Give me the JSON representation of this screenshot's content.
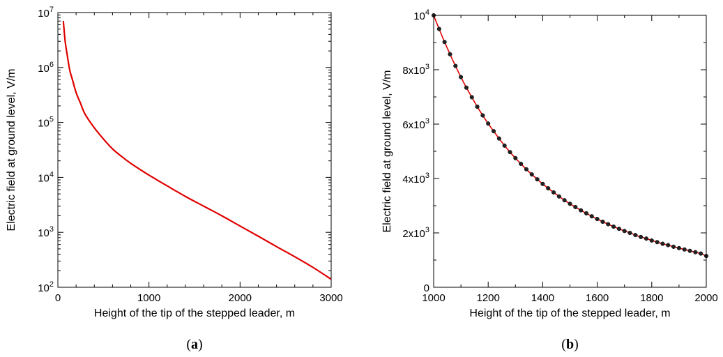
{
  "chart_data": [
    {
      "type": "line",
      "panel_label": "a",
      "xlabel": "Height of the tip of the stepped leader, m",
      "ylabel": "Electric field at ground level, V/m",
      "y_scale": "log",
      "xlim": [
        0,
        3000
      ],
      "ylim": [
        100,
        10000000
      ],
      "x_ticks": [
        "0",
        "1000",
        "2000",
        "3000"
      ],
      "y_ticks": [
        {
          "base": "10",
          "exp": "2"
        },
        {
          "base": "10",
          "exp": "3"
        },
        {
          "base": "10",
          "exp": "4"
        },
        {
          "base": "10",
          "exp": "5"
        },
        {
          "base": "10",
          "exp": "6"
        },
        {
          "base": "10",
          "exp": "7"
        }
      ],
      "colors": {
        "series_a": "#e00000",
        "series_b": "#333333"
      },
      "series": [
        {
          "style": "solid",
          "x": [
            60,
            80,
            100,
            130,
            160,
            200,
            250,
            300,
            400,
            500,
            600,
            700,
            800,
            900,
            1000,
            1200,
            1400,
            1600,
            1800,
            2000,
            2200,
            2400,
            2600,
            2800,
            3000
          ],
          "y": [
            7000000,
            3000000,
            1800000,
            900000,
            600000,
            350000,
            220000,
            140000,
            80000,
            50000,
            33000,
            24000,
            18000,
            14000,
            11000,
            7000,
            4500,
            3000,
            2000,
            1300,
            850,
            550,
            360,
            230,
            140
          ]
        },
        {
          "style": "dashed",
          "x": [
            60,
            80,
            100,
            130,
            160,
            200,
            250,
            300,
            400,
            500,
            600,
            700,
            800,
            900,
            1000,
            1200,
            1400,
            1600,
            1800,
            2000,
            2200,
            2400,
            2600,
            2800,
            3000
          ],
          "y": [
            7000000,
            3000000,
            1800000,
            900000,
            600000,
            350000,
            220000,
            140000,
            80000,
            50000,
            33000,
            24000,
            18000,
            14000,
            11000,
            7000,
            4500,
            3000,
            2000,
            1300,
            850,
            550,
            360,
            230,
            140
          ]
        }
      ]
    },
    {
      "type": "line",
      "panel_label": "b",
      "xlabel": "Height of the tip of the stepped leader, m",
      "ylabel": "Electric field at ground level, V/m",
      "y_scale": "linear",
      "xlim": [
        1000,
        2000
      ],
      "ylim": [
        0,
        10000
      ],
      "x_ticks": [
        "1000",
        "1200",
        "1400",
        "1600",
        "1800",
        "2000"
      ],
      "y_ticks": [
        {
          "base": "0",
          "exp": ""
        },
        {
          "base": "2x10",
          "exp": "3"
        },
        {
          "base": "4x10",
          "exp": "3"
        },
        {
          "base": "6x10",
          "exp": "3"
        },
        {
          "base": "8x10",
          "exp": "3"
        },
        {
          "base": "10",
          "exp": "4"
        }
      ],
      "colors": {
        "line": "#e00000",
        "markers": "#222222"
      },
      "series": [
        {
          "style": "solid-with-markers",
          "x": [
            1000,
            1020,
            1040,
            1060,
            1080,
            1100,
            1120,
            1140,
            1160,
            1180,
            1200,
            1220,
            1240,
            1260,
            1280,
            1300,
            1320,
            1340,
            1360,
            1380,
            1400,
            1420,
            1440,
            1460,
            1480,
            1500,
            1520,
            1540,
            1560,
            1580,
            1600,
            1620,
            1640,
            1660,
            1680,
            1700,
            1720,
            1740,
            1760,
            1780,
            1800,
            1820,
            1840,
            1860,
            1880,
            1900,
            1920,
            1940,
            1960,
            1980,
            2000
          ],
          "y": [
            10000,
            9500,
            9020,
            8570,
            8140,
            7730,
            7340,
            6990,
            6640,
            6320,
            6020,
            5740,
            5470,
            5210,
            4970,
            4750,
            4540,
            4340,
            4150,
            3970,
            3800,
            3640,
            3490,
            3340,
            3200,
            3070,
            2950,
            2830,
            2720,
            2610,
            2510,
            2410,
            2320,
            2230,
            2150,
            2070,
            2000,
            1920,
            1850,
            1790,
            1720,
            1660,
            1600,
            1550,
            1490,
            1440,
            1390,
            1340,
            1290,
            1240,
            1150
          ]
        }
      ]
    }
  ]
}
